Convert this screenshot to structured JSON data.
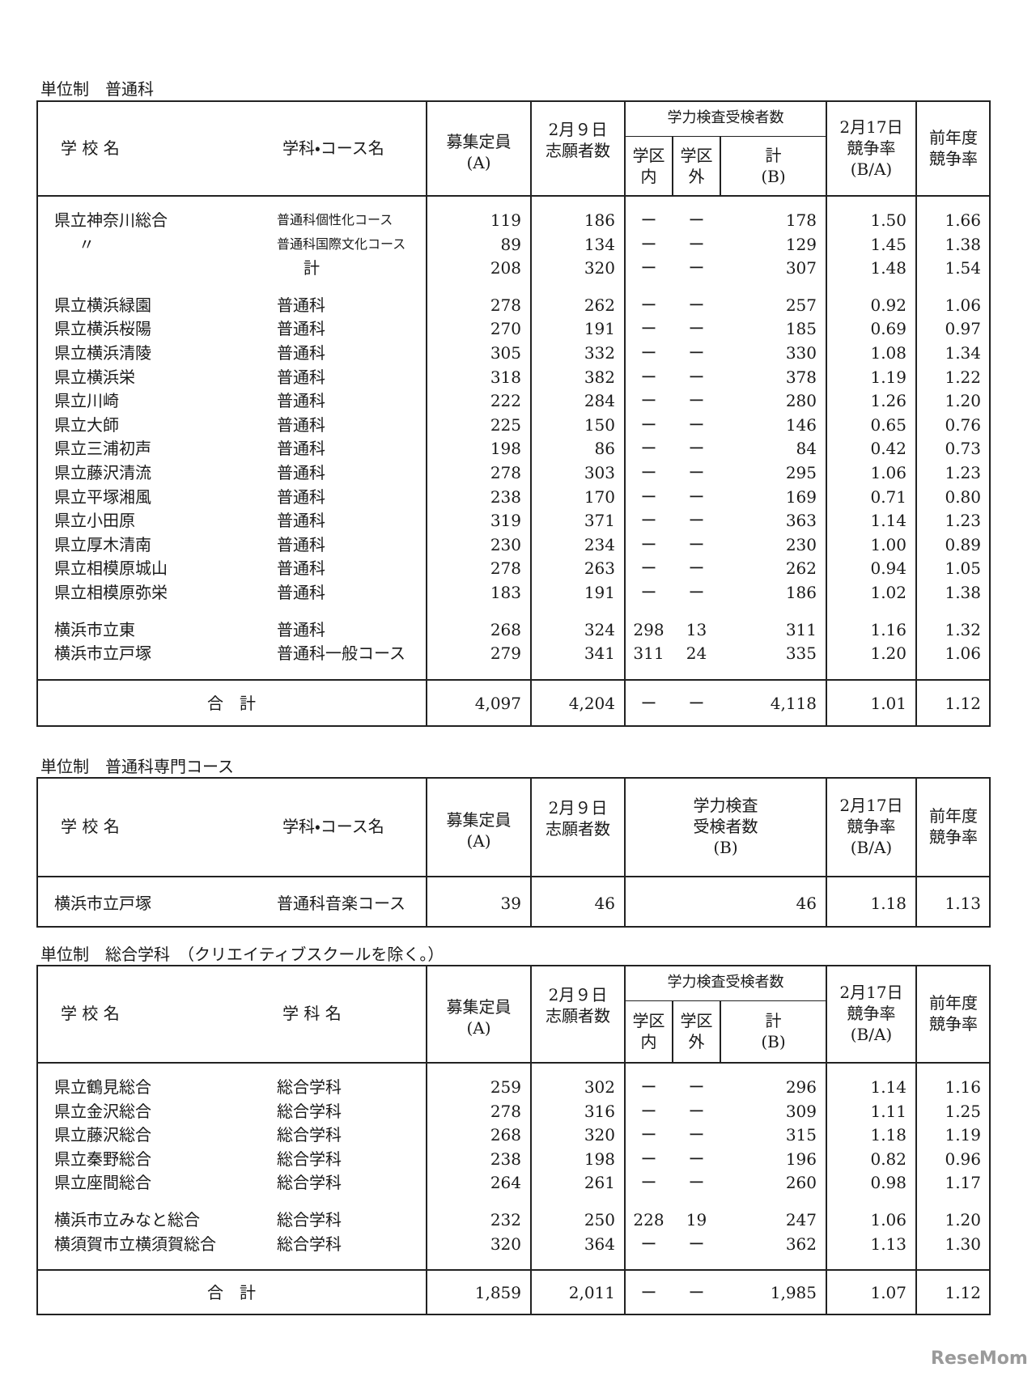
{
  "sections": [
    {
      "title": "単位制　普通科",
      "header": {
        "school": "学 校 名",
        "course": "学科・コース名",
        "capacity": [
          "募集定員",
          "(A)"
        ],
        "applicants": [
          "2月９日",
          "志願者数"
        ],
        "exam": "学力検査受検者数",
        "inner": [
          "学区",
          "内"
        ],
        "outer": [
          "学区",
          "外"
        ],
        "examTotal": [
          "計",
          "(B)"
        ],
        "ratio": [
          "2月17日",
          "競争率",
          "(B/A)"
        ],
        "prev": [
          "前年度",
          "競争率"
        ]
      },
      "groups": [
        [
          {
            "school": "県立神奈川総合",
            "course": "普通科個性化コース",
            "cells": [
              "119",
              "186",
              "ー",
              "ー",
              "178",
              "1.50",
              "1.66"
            ]
          },
          {
            "school": "〃",
            "course": "普通科国際文化コース",
            "cells": [
              "89",
              "134",
              "ー",
              "ー",
              "129",
              "1.45",
              "1.38"
            ]
          },
          {
            "course": "計",
            "cells": [
              "208",
              "320",
              "ー",
              "ー",
              "307",
              "1.48",
              "1.54"
            ]
          }
        ],
        [
          {
            "school": "県立横浜緑園",
            "course": "普通科",
            "cells": [
              "278",
              "262",
              "ー",
              "ー",
              "257",
              "0.92",
              "1.06"
            ]
          },
          {
            "school": "県立横浜桜陽",
            "course": "普通科",
            "cells": [
              "270",
              "191",
              "ー",
              "ー",
              "185",
              "0.69",
              "0.97"
            ]
          },
          {
            "school": "県立横浜清陵",
            "course": "普通科",
            "cells": [
              "305",
              "332",
              "ー",
              "ー",
              "330",
              "1.08",
              "1.34"
            ]
          },
          {
            "school": "県立横浜栄",
            "course": "普通科",
            "cells": [
              "318",
              "382",
              "ー",
              "ー",
              "378",
              "1.19",
              "1.22"
            ]
          },
          {
            "school": "県立川崎",
            "course": "普通科",
            "cells": [
              "222",
              "284",
              "ー",
              "ー",
              "280",
              "1.26",
              "1.20"
            ]
          },
          {
            "school": "県立大師",
            "course": "普通科",
            "cells": [
              "225",
              "150",
              "ー",
              "ー",
              "146",
              "0.65",
              "0.76"
            ]
          },
          {
            "school": "県立三浦初声",
            "course": "普通科",
            "cells": [
              "198",
              "86",
              "ー",
              "ー",
              "84",
              "0.42",
              "0.73"
            ]
          },
          {
            "school": "県立藤沢清流",
            "course": "普通科",
            "cells": [
              "278",
              "303",
              "ー",
              "ー",
              "295",
              "1.06",
              "1.23"
            ]
          },
          {
            "school": "県立平塚湘風",
            "course": "普通科",
            "cells": [
              "238",
              "170",
              "ー",
              "ー",
              "169",
              "0.71",
              "0.80"
            ]
          },
          {
            "school": "県立小田原",
            "course": "普通科",
            "cells": [
              "319",
              "371",
              "ー",
              "ー",
              "363",
              "1.14",
              "1.23"
            ]
          },
          {
            "school": "県立厚木清南",
            "course": "普通科",
            "cells": [
              "230",
              "234",
              "ー",
              "ー",
              "230",
              "1.00",
              "0.89"
            ]
          },
          {
            "school": "県立相模原城山",
            "course": "普通科",
            "cells": [
              "278",
              "263",
              "ー",
              "ー",
              "262",
              "0.94",
              "1.05"
            ]
          },
          {
            "school": "県立相模原弥栄",
            "course": "普通科",
            "cells": [
              "183",
              "191",
              "ー",
              "ー",
              "186",
              "1.02",
              "1.38"
            ]
          }
        ],
        [
          {
            "school": "横浜市立東",
            "course": "普通科",
            "cells": [
              "268",
              "324",
              "298",
              "13",
              "311",
              "1.16",
              "1.32"
            ]
          },
          {
            "school": "横浜市立戸塚",
            "course": "普通科一般コース",
            "cells": [
              "279",
              "341",
              "311",
              "24",
              "335",
              "1.20",
              "1.06"
            ]
          }
        ]
      ],
      "total": {
        "label": "合　計",
        "cells": [
          "4,097",
          "4,204",
          "ー",
          "ー",
          "4,118",
          "1.01",
          "1.12"
        ]
      }
    },
    {
      "title": "単位制　普通科専門コース",
      "header": {
        "school": "学 校 名",
        "course": "学科・コース名",
        "capacity": [
          "募集定員",
          "(A)"
        ],
        "applicants": [
          "2月９日",
          "志願者数"
        ],
        "exam": [
          "学力検査",
          "受検者数",
          "(B)"
        ],
        "ratio": [
          "2月17日",
          "競争率",
          "(B/A)"
        ],
        "prev": [
          "前年度",
          "競争率"
        ]
      },
      "groups": [
        [
          {
            "school": "横浜市立戸塚",
            "course": "普通科音楽コース",
            "cells": [
              "39",
              "46",
              "46",
              "1.18",
              "1.13"
            ]
          }
        ]
      ]
    },
    {
      "title": "単位制　総合学科　（クリエイティブスクールを除く。）",
      "header": {
        "school": "学 校 名",
        "course": "学 科 名",
        "capacity": [
          "募集定員",
          "(A)"
        ],
        "applicants": [
          "2月９日",
          "志願者数"
        ],
        "exam": "学力検査受検者数",
        "inner": [
          "学区",
          "内"
        ],
        "outer": [
          "学区",
          "外"
        ],
        "examTotal": [
          "計",
          "(B)"
        ],
        "ratio": [
          "2月17日",
          "競争率",
          "(B/A)"
        ],
        "prev": [
          "前年度",
          "競争率"
        ]
      },
      "groups": [
        [
          {
            "school": "県立鶴見総合",
            "course": "総合学科",
            "cells": [
              "259",
              "302",
              "ー",
              "ー",
              "296",
              "1.14",
              "1.16"
            ]
          },
          {
            "school": "県立金沢総合",
            "course": "総合学科",
            "cells": [
              "278",
              "316",
              "ー",
              "ー",
              "309",
              "1.11",
              "1.25"
            ]
          },
          {
            "school": "県立藤沢総合",
            "course": "総合学科",
            "cells": [
              "268",
              "320",
              "ー",
              "ー",
              "315",
              "1.18",
              "1.19"
            ]
          },
          {
            "school": "県立秦野総合",
            "course": "総合学科",
            "cells": [
              "238",
              "198",
              "ー",
              "ー",
              "196",
              "0.82",
              "0.96"
            ]
          },
          {
            "school": "県立座間総合",
            "course": "総合学科",
            "cells": [
              "264",
              "261",
              "ー",
              "ー",
              "260",
              "0.98",
              "1.17"
            ]
          }
        ],
        [
          {
            "school": "横浜市立みなと総合",
            "course": "総合学科",
            "cells": [
              "232",
              "250",
              "228",
              "19",
              "247",
              "1.06",
              "1.20"
            ]
          },
          {
            "school": "横須賀市立横須賀総合",
            "course": "総合学科",
            "cells": [
              "320",
              "364",
              "ー",
              "ー",
              "362",
              "1.13",
              "1.30"
            ]
          }
        ]
      ],
      "total": {
        "label": "合　計",
        "cells": [
          "1,859",
          "2,011",
          "ー",
          "ー",
          "1,985",
          "1.07",
          "1.12"
        ]
      }
    }
  ],
  "watermark": "ReseMom"
}
